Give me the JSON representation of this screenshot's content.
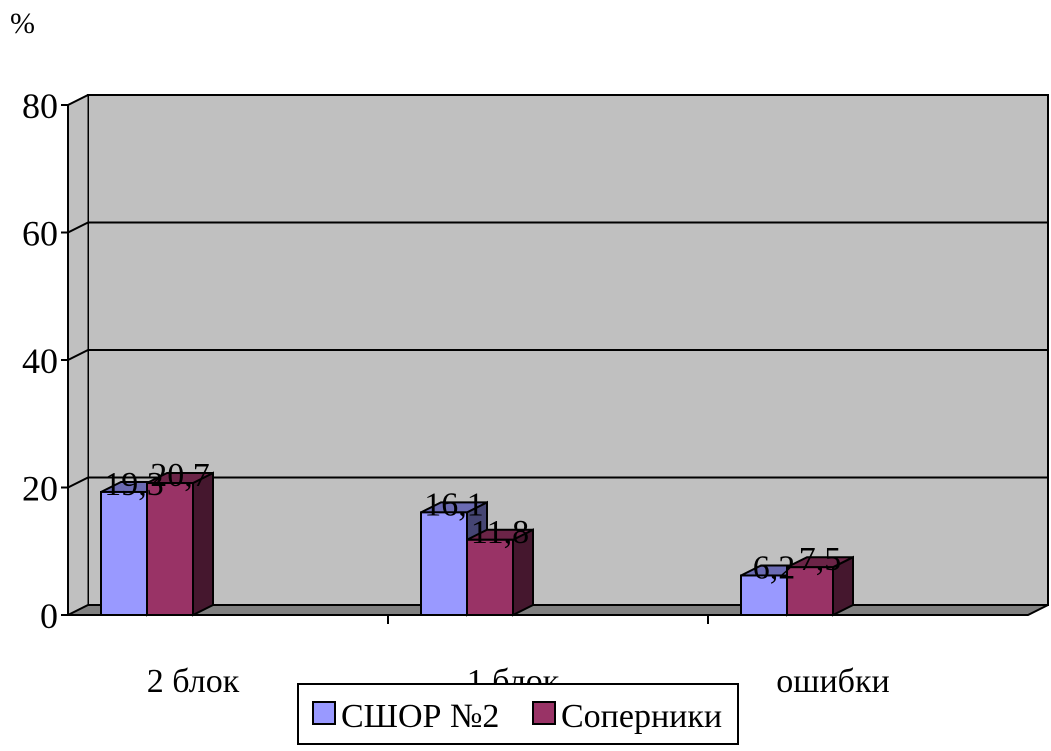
{
  "chart_data": {
    "type": "bar",
    "ylabel": "%",
    "categories": [
      "2 блок",
      "1 блок",
      "ошибки"
    ],
    "series": [
      {
        "name": "СШОР №2",
        "values": [
          19.3,
          16.1,
          6.2
        ],
        "labels": [
          "19,3",
          "16,1",
          "6,2"
        ]
      },
      {
        "name": "Соперники",
        "values": [
          20.7,
          11.8,
          7.5
        ],
        "labels": [
          "20,7",
          "11,8",
          "7,5"
        ]
      }
    ],
    "yticks": [
      "0",
      "20",
      "40",
      "60",
      "80"
    ],
    "ylim": [
      0,
      80
    ],
    "grid": true,
    "legend": "bottom",
    "colors": {
      "series1": "#9999ff",
      "series2": "#993366",
      "wall": "#c0c0c0",
      "floor": "#808080"
    }
  }
}
